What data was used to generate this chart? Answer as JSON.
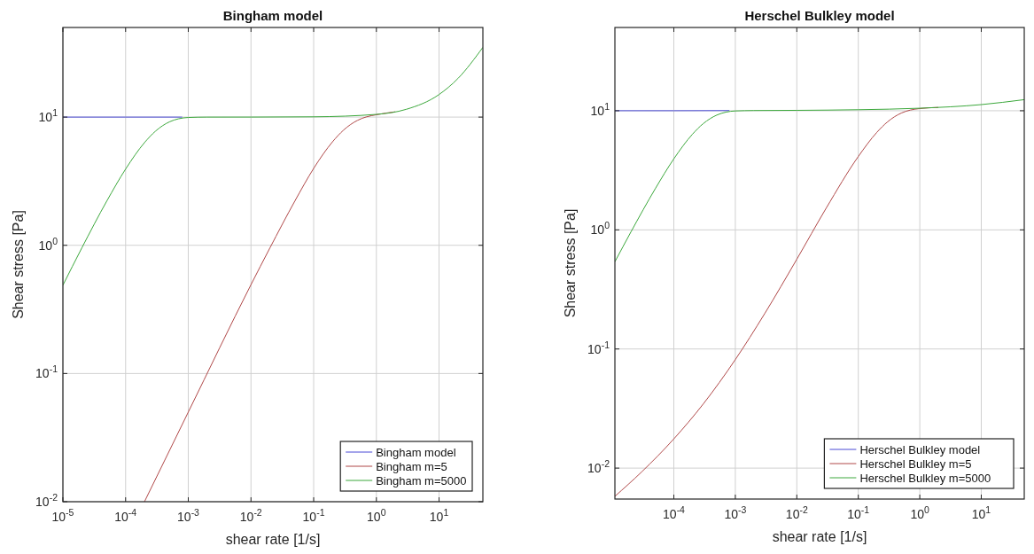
{
  "chart_data": [
    {
      "type": "line",
      "title": "Bingham model",
      "xlabel": "shear rate [1/s]",
      "ylabel": "Shear stress [Pa]",
      "log": "xy",
      "grid": true,
      "legend": "bottom right",
      "xlim": [
        1e-05,
        50
      ],
      "ylim": [
        0.01,
        50
      ],
      "xticks": [
        {
          "value": 1e-05,
          "label": "10$^{-5}$"
        },
        {
          "value": 0.0001,
          "label": "10$^{-4}$"
        },
        {
          "value": 0.001,
          "label": "10$^{-3}$"
        },
        {
          "value": 0.01,
          "label": "10$^{-2}$"
        },
        {
          "value": 0.1,
          "label": "10$^{-1}$"
        },
        {
          "value": 1,
          "label": "10$^{0}$"
        },
        {
          "value": 10,
          "label": "10$^{1}$"
        }
      ],
      "yticks": [
        {
          "value": 0.01,
          "label": "10$^{-2}$"
        },
        {
          "value": 0.1,
          "label": "10$^{-1}$"
        },
        {
          "value": 1,
          "label": "10$^{0}$"
        },
        {
          "value": 10,
          "label": "10$^{1}$"
        }
      ],
      "series": [
        {
          "name": "Bingham model",
          "color": "#4b4bd6",
          "x": [
            1e-05,
            0.0001,
            0.0008
          ],
          "values": [
            10,
            10,
            10
          ]
        },
        {
          "name": "Bingham m=5",
          "color": "#b04848",
          "x": [
            0.0002,
            0.001,
            0.01,
            0.02,
            0.05,
            0.1,
            0.2,
            0.3,
            0.5,
            0.7,
            1,
            2
          ],
          "values": [
            0.01,
            0.05,
            0.493,
            0.952,
            2.21,
            3.98,
            6.42,
            7.92,
            9.43,
            10.05,
            10.43,
            11
          ]
        },
        {
          "name": "Bingham m=5000",
          "color": "#3ca83c",
          "x": [
            1e-05,
            2e-05,
            5e-05,
            0.0001,
            0.0002,
            0.0003,
            0.0005,
            0.0007,
            0.001,
            0.002,
            0.01,
            0.1,
            1,
            3,
            10,
            20,
            50
          ],
          "values": [
            0.488,
            0.952,
            2.21,
            3.93,
            6.32,
            7.77,
            9.18,
            9.7,
            9.93,
            10,
            10.005,
            10.05,
            10.5,
            11.5,
            15,
            20,
            35
          ]
        }
      ]
    },
    {
      "type": "line",
      "title": "Herschel Bulkley model",
      "xlabel": "shear rate [1/s]",
      "ylabel": "Shear stress [Pa]",
      "log": "xy",
      "grid": true,
      "legend": "bottom right",
      "xlim": [
        1.1e-05,
        50
      ],
      "ylim": [
        0.0055,
        50
      ],
      "xticks": [
        {
          "value": 0.0001,
          "label": "10$^{-4}$"
        },
        {
          "value": 0.001,
          "label": "10$^{-3}$"
        },
        {
          "value": 0.01,
          "label": "10$^{-2}$"
        },
        {
          "value": 0.1,
          "label": "10$^{-1}$"
        },
        {
          "value": 1,
          "label": "10$^{0}$"
        },
        {
          "value": 10,
          "label": "10$^{1}$"
        }
      ],
      "yticks": [
        {
          "value": 0.01,
          "label": "10$^{-2}$"
        },
        {
          "value": 0.1,
          "label": "10$^{-1}$"
        },
        {
          "value": 1,
          "label": "10$^{0}$"
        },
        {
          "value": 10,
          "label": "10$^{1}$"
        }
      ],
      "series": [
        {
          "name": "Herschel Bulkley model",
          "color": "#4b4bd6",
          "x": [
            1.1e-05,
            0.0001,
            0.0008
          ],
          "values": [
            10.005,
            10.01,
            10.03
          ]
        },
        {
          "name": "Herschel Bulkley m=5",
          "color": "#b04848",
          "x": [
            1.1e-05,
            3e-05,
            0.0001,
            0.0003,
            0.001,
            0.003,
            0.01,
            0.03,
            0.1,
            0.2,
            0.3,
            0.5,
            0.7,
            1,
            2
          ],
          "values": [
            0.0058,
            0.0093,
            0.0176,
            0.0345,
            0.0815,
            0.198,
            0.567,
            1.52,
            4.13,
            6.58,
            8.08,
            9.56,
            10.13,
            10.43,
            10.66
          ]
        },
        {
          "name": "Herschel Bulkley m=5000",
          "color": "#3ca83c",
          "x": [
            1.1e-05,
            2e-05,
            5e-05,
            0.0001,
            0.0002,
            0.0003,
            0.0005,
            0.0007,
            0.001,
            0.002,
            0.01,
            0.1,
            1,
            10,
            50
          ],
          "values": [
            0.54,
            0.959,
            2.22,
            3.95,
            6.34,
            7.79,
            9.2,
            9.73,
            9.96,
            10.04,
            10.08,
            10.2,
            10.5,
            11.26,
            12.39
          ]
        }
      ]
    }
  ]
}
